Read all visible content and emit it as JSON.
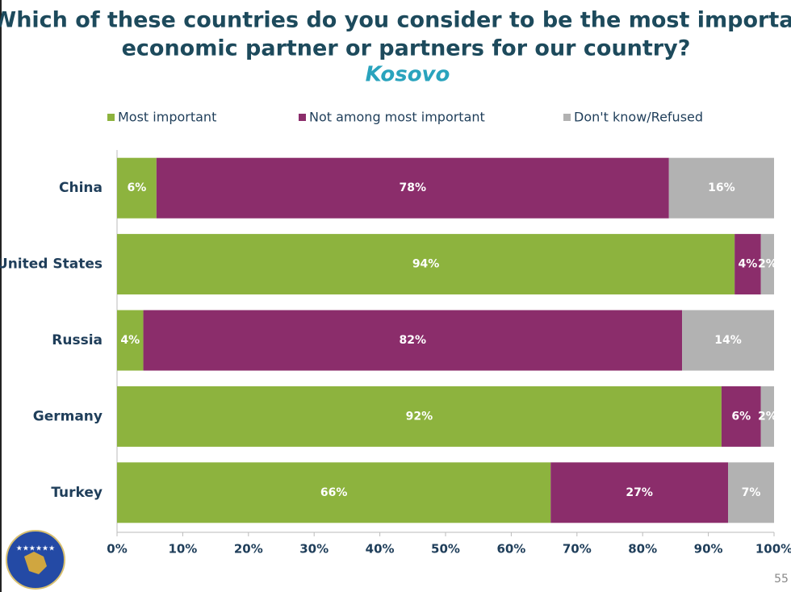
{
  "chart_data": {
    "type": "stacked_barh",
    "title": [
      "Which of these countries do you consider to be the most important",
      "economic partner or partners for our country?"
    ],
    "subtitle": "Kosovo",
    "categories": [
      "China",
      "United States",
      "Russia",
      "Germany",
      "Turkey"
    ],
    "series": [
      {
        "name": "Most important",
        "color": "#8db33e",
        "values": [
          6,
          94,
          4,
          92,
          66
        ],
        "value_labels": [
          "6%",
          "94%",
          "4%",
          "92%",
          "66%"
        ]
      },
      {
        "name": "Not among most important",
        "color": "#8b2d6b",
        "values": [
          78,
          4,
          82,
          6,
          27
        ],
        "value_labels": [
          "78%",
          "4%",
          "82%",
          "6%",
          "27%"
        ]
      },
      {
        "name": "Don't know/Refused",
        "color": "#b2b2b2",
        "values": [
          16,
          2,
          14,
          2,
          7
        ],
        "value_labels": [
          "16%",
          "2%",
          "14%",
          "2%",
          "7%"
        ]
      }
    ],
    "xlim": [
      0,
      100
    ],
    "xticks": [
      {
        "value": 0,
        "label": "0%"
      },
      {
        "value": 10,
        "label": "10%"
      },
      {
        "value": 20,
        "label": "20%"
      },
      {
        "value": 30,
        "label": "30%"
      },
      {
        "value": 40,
        "label": "40%"
      },
      {
        "value": 50,
        "label": "50%"
      },
      {
        "value": 60,
        "label": "60%"
      },
      {
        "value": 70,
        "label": "70%"
      },
      {
        "value": 80,
        "label": "80%"
      },
      {
        "value": 90,
        "label": "90%"
      },
      {
        "value": 100,
        "label": "100%"
      }
    ],
    "legend": "top",
    "page_number": "55"
  }
}
